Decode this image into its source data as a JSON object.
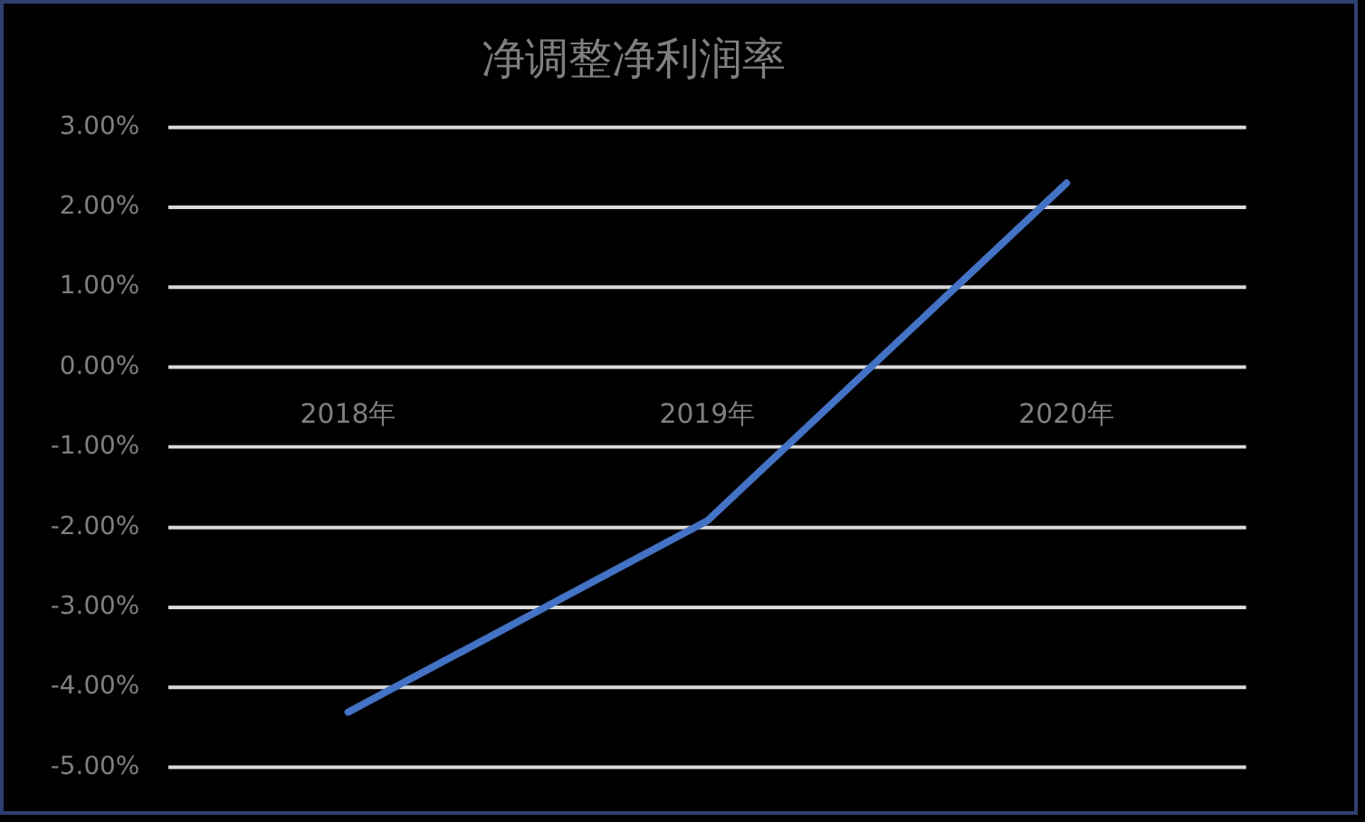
{
  "chart_data": {
    "type": "line",
    "title": "净调整净利润率",
    "categories": [
      "2018年",
      "2019年",
      "2020年"
    ],
    "series": [
      {
        "color": "#4472c4",
        "values": [
          -4.31,
          -1.92,
          2.3
        ]
      }
    ],
    "ylim": [
      -5,
      3
    ],
    "yticks": [
      {
        "value": 3,
        "label": "3.00%"
      },
      {
        "value": 2,
        "label": "2.00%"
      },
      {
        "value": 1,
        "label": "1.00%"
      },
      {
        "value": 0,
        "label": "0.00%"
      },
      {
        "value": -1,
        "label": "-1.00%"
      },
      {
        "value": -2,
        "label": "-2.00%"
      },
      {
        "value": -3,
        "label": "-3.00%"
      },
      {
        "value": -4,
        "label": "-4.00%"
      },
      {
        "value": -5,
        "label": "-5.00%"
      }
    ],
    "grid": "y",
    "legend": false,
    "marker": "none",
    "line_style": "solid"
  }
}
